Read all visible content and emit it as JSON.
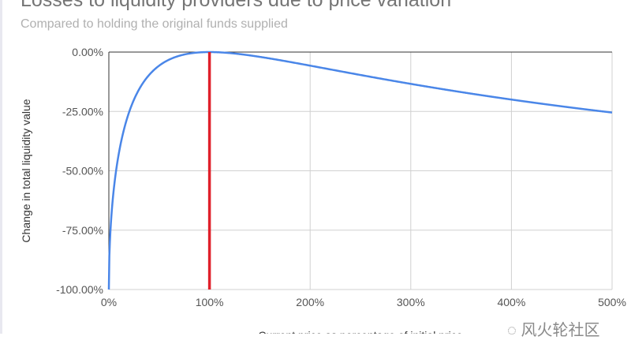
{
  "chart_data": {
    "type": "line",
    "title": "Losses to liquidity providers due to price variation",
    "subtitle": "Compared to holding the original funds supplied",
    "xlabel": "Current price as percentage of initial price",
    "ylabel": "Change in total liquidity value",
    "xlim": [
      0,
      500
    ],
    "ylim": [
      -100,
      0
    ],
    "x_ticks": [
      "0%",
      "100%",
      "200%",
      "300%",
      "400%",
      "500%"
    ],
    "y_ticks": [
      "0.00%",
      "-25.00%",
      "-50.00%",
      "-75.00%",
      "-100.00%"
    ],
    "grid": true,
    "series": [
      {
        "x": [
          0,
          1,
          2,
          5,
          10,
          20,
          30,
          40,
          50,
          60,
          70,
          80,
          90,
          100,
          125,
          150,
          175,
          200,
          250,
          300,
          350,
          400,
          450,
          500
        ],
        "y": [
          -100,
          -80.2,
          -72.3,
          -57.4,
          -42.5,
          -25.5,
          -15.7,
          -9.7,
          -5.7,
          -3.2,
          -1.6,
          -0.6,
          -0.1,
          0,
          -0.6,
          -2.0,
          -3.8,
          -5.7,
          -9.6,
          -13.4,
          -16.9,
          -20.0,
          -22.9,
          -25.5
        ],
        "color": "#4a86e8"
      }
    ],
    "reference_line": {
      "x": 100,
      "color": "#e0202a"
    }
  },
  "watermark": "风火轮社区"
}
